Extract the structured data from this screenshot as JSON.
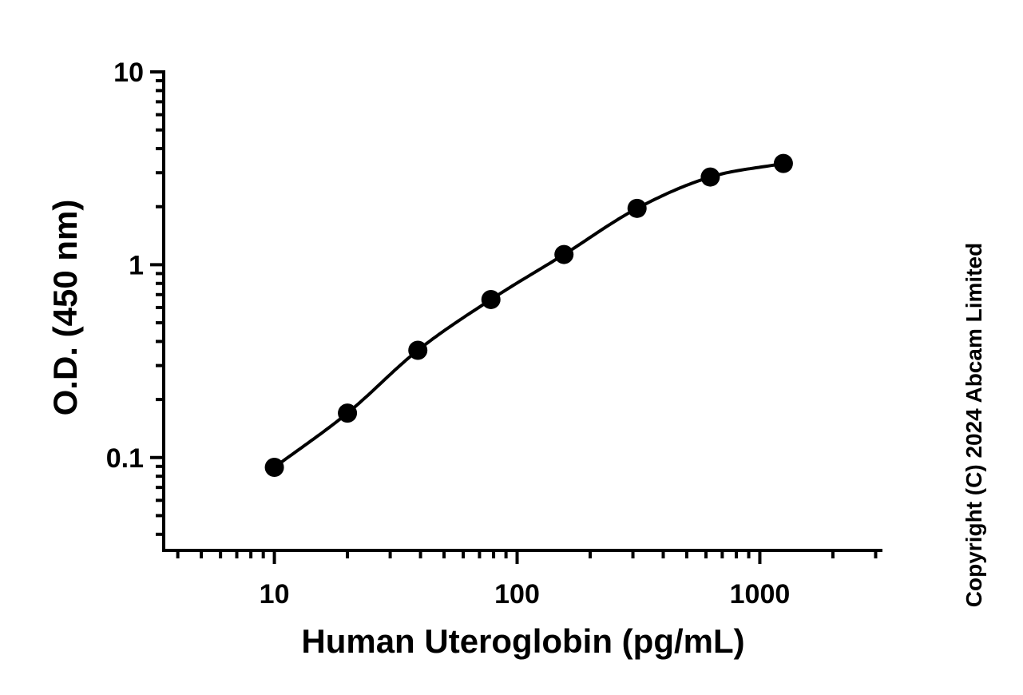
{
  "chart_data": {
    "type": "scatter",
    "title": "",
    "xlabel": "Human Uteroglobin (pg/mL)",
    "ylabel": "O.D. (450 nm)",
    "x_scale": "log",
    "y_scale": "log",
    "xlim": [
      3.5,
      3200
    ],
    "ylim": [
      0.033,
      10
    ],
    "x_ticks": [
      {
        "value": 10,
        "label": "10"
      },
      {
        "value": 100,
        "label": "100"
      },
      {
        "value": 1000,
        "label": "1000"
      }
    ],
    "y_ticks": [
      {
        "value": 0.1,
        "label": "0.1"
      },
      {
        "value": 1,
        "label": "1"
      },
      {
        "value": 10,
        "label": "10"
      }
    ],
    "grid": false,
    "legend": "none",
    "series": [
      {
        "x": [
          10,
          20,
          39,
          78,
          156,
          312,
          625,
          1250
        ],
        "y": [
          0.089,
          0.17,
          0.36,
          0.66,
          1.13,
          1.96,
          2.85,
          3.35
        ],
        "marker": "circle",
        "fit_line": true,
        "color": "#000000"
      }
    ],
    "annotations": [
      {
        "text": "Copyright (C) 2024 Abcam Limited",
        "placement": "right-vertical"
      }
    ]
  }
}
